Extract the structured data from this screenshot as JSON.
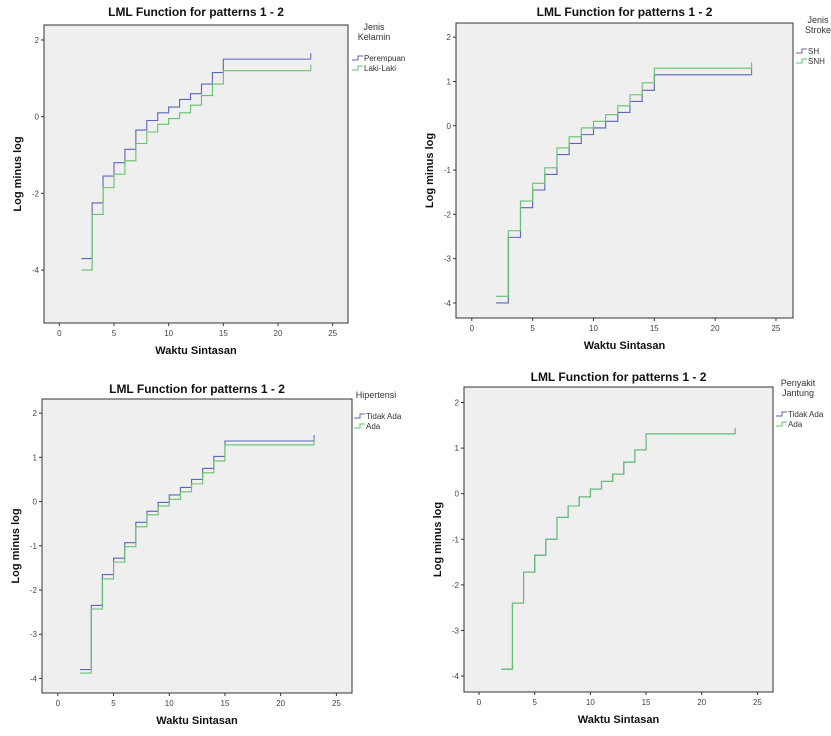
{
  "colors": {
    "series1": "#5a66b8",
    "series2": "#63c26e",
    "plot_bg": "#efefef",
    "axis": "#333333"
  },
  "chart_data": [
    {
      "type": "line",
      "step": true,
      "title": "LML Function for patterns 1 - 2",
      "xlabel": "Waktu Sintasan",
      "ylabel": "Log minus log",
      "xlim": [
        -1.4,
        26.4
      ],
      "ylim": [
        -5.38,
        2.39
      ],
      "xticks": [
        0,
        5,
        10,
        15,
        20,
        25
      ],
      "yticks": [
        -4,
        -2,
        0,
        2
      ],
      "legend_title": "Jenis Kelamin",
      "legend_position": "right",
      "grid": false,
      "x": [
        2,
        3,
        4,
        5,
        6,
        7,
        8,
        9,
        10,
        11,
        12,
        13,
        14,
        15
      ],
      "x_end": 23,
      "series": [
        {
          "name": "Perempuan",
          "values": [
            -3.7,
            -2.25,
            -1.55,
            -1.2,
            -0.85,
            -0.35,
            -0.1,
            0.1,
            0.25,
            0.45,
            0.6,
            0.85,
            1.15,
            1.5
          ]
        },
        {
          "name": "Laki-Laki",
          "values": [
            -4.0,
            -2.55,
            -1.85,
            -1.5,
            -1.15,
            -0.7,
            -0.4,
            -0.2,
            -0.05,
            0.1,
            0.3,
            0.55,
            0.85,
            1.2
          ]
        }
      ]
    },
    {
      "type": "line",
      "step": true,
      "title": "LML Function for patterns 1 - 2",
      "xlabel": "Waktu Sintasan",
      "ylabel": "Log minus log",
      "xlim": [
        -1.3,
        26.4
      ],
      "ylim": [
        -4.34,
        2.32
      ],
      "xticks": [
        0,
        5,
        10,
        15,
        20,
        25
      ],
      "yticks": [
        -4,
        -3,
        -2,
        -1,
        0,
        1,
        2
      ],
      "legend_title": "Jenis Stroke",
      "legend_position": "right",
      "grid": false,
      "x": [
        2,
        3,
        4,
        5,
        6,
        7,
        8,
        9,
        10,
        11,
        12,
        13,
        14,
        15
      ],
      "x_end": 23,
      "series": [
        {
          "name": "SH",
          "values": [
            -4.0,
            -2.52,
            -1.85,
            -1.45,
            -1.1,
            -0.65,
            -0.4,
            -0.2,
            -0.05,
            0.1,
            0.3,
            0.55,
            0.8,
            1.15
          ]
        },
        {
          "name": "SNH",
          "values": [
            -3.85,
            -2.37,
            -1.7,
            -1.3,
            -0.95,
            -0.5,
            -0.25,
            -0.05,
            0.1,
            0.25,
            0.45,
            0.7,
            0.97,
            1.3
          ]
        }
      ]
    },
    {
      "type": "line",
      "step": true,
      "title": "LML Function for patterns 1 - 2",
      "xlabel": "Waktu Sintasan",
      "ylabel": "Log minus log",
      "xlim": [
        -1.42,
        26.4
      ],
      "ylim": [
        -4.33,
        2.32
      ],
      "xticks": [
        0,
        5,
        10,
        15,
        20,
        25
      ],
      "yticks": [
        -4,
        -3,
        -2,
        -1,
        0,
        1,
        2
      ],
      "legend_title": "Hipertensi",
      "legend_position": "right",
      "grid": false,
      "x": [
        2,
        3,
        4,
        5,
        6,
        7,
        8,
        9,
        10,
        11,
        12,
        13,
        14,
        15
      ],
      "x_end": 23,
      "series": [
        {
          "name": "Tidak Ada",
          "values": [
            -3.8,
            -2.35,
            -1.65,
            -1.28,
            -0.93,
            -0.47,
            -0.22,
            -0.02,
            0.15,
            0.32,
            0.5,
            0.75,
            1.02,
            1.37
          ]
        },
        {
          "name": "Ada",
          "values": [
            -3.88,
            -2.43,
            -1.75,
            -1.37,
            -1.02,
            -0.57,
            -0.3,
            -0.1,
            0.05,
            0.22,
            0.4,
            0.65,
            0.92,
            1.28
          ]
        }
      ]
    },
    {
      "type": "line",
      "step": true,
      "title": "LML Function for patterns 1 - 2",
      "xlabel": "Waktu Sintasan",
      "ylabel": "Log minus log",
      "xlim": [
        -1.35,
        26.4
      ],
      "ylim": [
        -4.35,
        2.34
      ],
      "xticks": [
        0,
        5,
        10,
        15,
        20,
        25
      ],
      "yticks": [
        -4,
        -3,
        -2,
        -1,
        0,
        1,
        2
      ],
      "legend_title": "Penyakit Jantung",
      "legend_position": "right",
      "grid": false,
      "x": [
        2,
        3,
        4,
        5,
        6,
        7,
        8,
        9,
        10,
        11,
        12,
        13,
        14,
        15
      ],
      "x_end": 23,
      "series": [
        {
          "name": "Tidak Ada",
          "values": [
            -3.85,
            -2.4,
            -1.72,
            -1.35,
            -1.0,
            -0.52,
            -0.27,
            -0.07,
            0.1,
            0.27,
            0.43,
            0.69,
            0.96,
            1.31
          ]
        },
        {
          "name": "Ada",
          "values": [
            -3.85,
            -2.4,
            -1.72,
            -1.35,
            -1.0,
            -0.52,
            -0.27,
            -0.07,
            0.1,
            0.27,
            0.43,
            0.69,
            0.96,
            1.31
          ]
        }
      ]
    }
  ]
}
